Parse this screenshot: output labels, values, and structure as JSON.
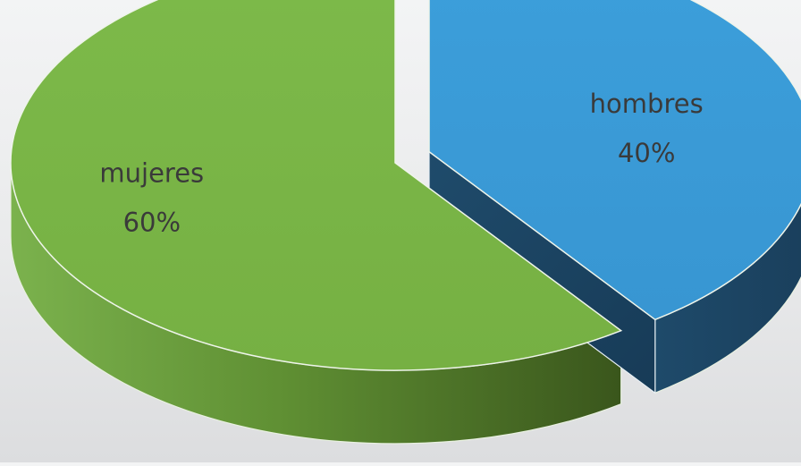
{
  "chart_data": {
    "type": "pie",
    "style": "3d-exploded",
    "slices": [
      {
        "label": "hombres",
        "value": 40,
        "value_label": "40%",
        "color": "#3a9bd5",
        "side_color": "#1d4866",
        "exploded": true
      },
      {
        "label": "mujeres",
        "value": 60,
        "value_label": "60%",
        "color": "#7ab648",
        "side_color": "#3a5a1c",
        "exploded": false
      }
    ]
  }
}
